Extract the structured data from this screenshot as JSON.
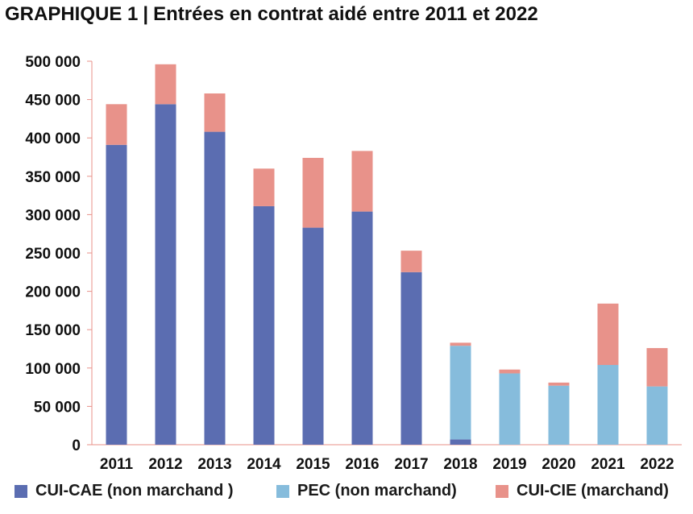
{
  "title": {
    "prefix": "GRAPHIQUE 1",
    "separator": "|",
    "text": "Entrées en contrat aidé entre 2011 et 2022"
  },
  "colors": {
    "cui_cae": "#5b6db1",
    "pec": "#86bcdc",
    "cui_cie": "#e8928a",
    "axis": "#e8928a"
  },
  "legend": [
    {
      "label": "CUI-CAE (non marchand )",
      "color": "#5b6db1"
    },
    {
      "label": "PEC (non marchand)",
      "color": "#86bcdc"
    },
    {
      "label": "CUI-CIE (marchand)",
      "color": "#e8928a"
    }
  ],
  "chart_data": {
    "type": "bar",
    "stacked": true,
    "categories": [
      "2011",
      "2012",
      "2013",
      "2014",
      "2015",
      "2016",
      "2017",
      "2018",
      "2019",
      "2020",
      "2021",
      "2022"
    ],
    "series": [
      {
        "name": "CUI-CAE (non marchand )",
        "color": "#5b6db1",
        "values": [
          391000,
          444000,
          408000,
          311000,
          283000,
          304000,
          225000,
          7000,
          0,
          0,
          0,
          0
        ]
      },
      {
        "name": "PEC (non marchand)",
        "color": "#86bcdc",
        "values": [
          0,
          0,
          0,
          0,
          0,
          0,
          0,
          122000,
          93000,
          77000,
          104000,
          76000
        ]
      },
      {
        "name": "CUI-CIE (marchand)",
        "color": "#e8928a",
        "values": [
          53000,
          52000,
          50000,
          49000,
          91000,
          79000,
          28000,
          4000,
          5000,
          4000,
          80000,
          50000
        ]
      }
    ],
    "ylim": [
      0,
      500000
    ],
    "yticks": [
      0,
      50000,
      100000,
      150000,
      200000,
      250000,
      300000,
      350000,
      400000,
      450000,
      500000
    ],
    "ytick_labels": [
      "0",
      "50 000",
      "100 000",
      "150 000",
      "200 000",
      "250 000",
      "300 000",
      "350 000",
      "400 000",
      "450 000",
      "500 000"
    ],
    "grid": false,
    "legend_position": "bottom"
  }
}
